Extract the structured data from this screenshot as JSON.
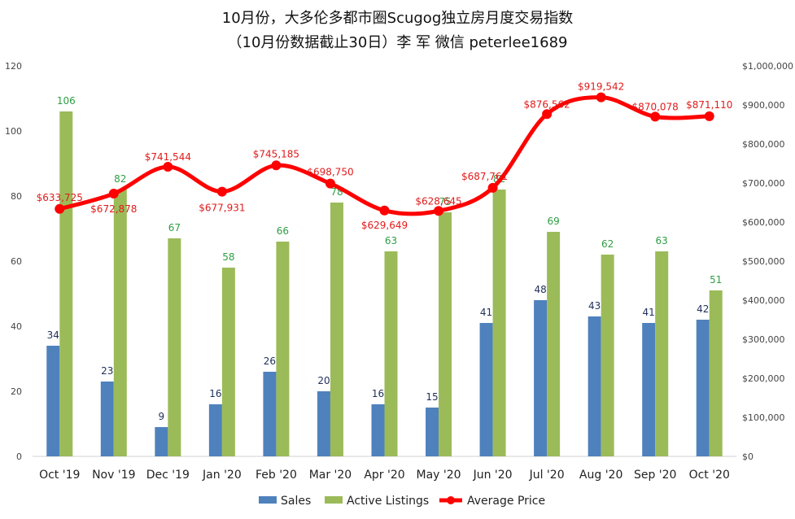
{
  "chart_data": {
    "type": "bar",
    "title": "10月份，大多伦多都市圈Scugog独立房月度交易指数",
    "subtitle": "（10月份数据截止30日）李 军  微信  peterlee1689",
    "categories": [
      "Oct '19",
      "Nov '19",
      "Dec '19",
      "Jan '20",
      "Feb '20",
      "Mar '20",
      "Apr '20",
      "May '20",
      "Jun '20",
      "Jul '20",
      "Aug '20",
      "Sep '20",
      "Oct '20"
    ],
    "series": [
      {
        "name": "Sales",
        "type": "bar",
        "axis": "left",
        "color": "#4f81bd",
        "values": [
          34,
          23,
          9,
          16,
          26,
          20,
          16,
          15,
          41,
          48,
          43,
          41,
          42
        ]
      },
      {
        "name": "Active Listings",
        "type": "bar",
        "axis": "left",
        "color": "#9bbb59",
        "values": [
          106,
          82,
          67,
          58,
          66,
          78,
          63,
          75,
          82,
          69,
          62,
          63,
          51
        ]
      },
      {
        "name": "Average Price",
        "type": "line",
        "axis": "right",
        "color": "#ff0000",
        "values": [
          633725,
          672878,
          741544,
          677931,
          745185,
          698750,
          629649,
          628645,
          687761,
          876562,
          919542,
          870078,
          871110
        ],
        "labels": [
          "$633,725",
          "$672,878",
          "$741,544",
          "$677,931",
          "$745,185",
          "$698,750",
          "$629,649",
          "$628,645",
          "$687,761",
          "$876,562",
          "$919,542",
          "$870,078",
          "$871,110"
        ]
      }
    ],
    "ylim_left": [
      0,
      120
    ],
    "yticks_left": [
      "0",
      "20",
      "40",
      "60",
      "80",
      "100",
      "120"
    ],
    "ylim_right": [
      0,
      1000000
    ],
    "yticks_right": [
      "$0",
      "$100,000",
      "$200,000",
      "$300,000",
      "$400,000",
      "$500,000",
      "$600,000",
      "$700,000",
      "$800,000",
      "$900,000",
      "$1,000,000"
    ],
    "grid": false,
    "legend_position": "bottom"
  }
}
